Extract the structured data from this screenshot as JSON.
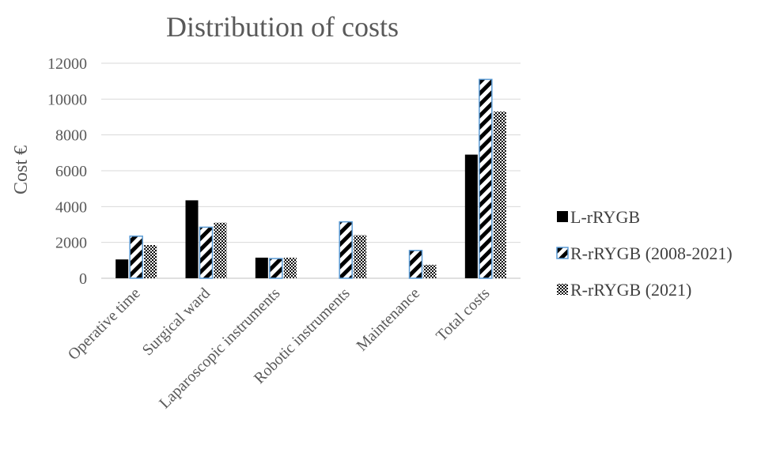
{
  "chart_data": {
    "type": "bar",
    "title": "Distribution of costs",
    "xlabel": "",
    "ylabel": "Cost €",
    "ylim": [
      0,
      12000
    ],
    "yticks": [
      "0",
      "2000",
      "4000",
      "6000",
      "8000",
      "10000",
      "12000"
    ],
    "grid": true,
    "legend_position": "right",
    "categories": [
      "Operative time",
      "Surgical ward",
      "Laparoscopic instruments",
      "Robotic instruments",
      "Maintenance",
      "Total costs"
    ],
    "series": [
      {
        "name": "L-rRYGB",
        "pattern": "solid-black",
        "values": [
          1050,
          4350,
          1150,
          0,
          0,
          6900
        ]
      },
      {
        "name": "R-rRYGB (2008-2021)",
        "pattern": "diagonal-stripes-blue-outline",
        "values": [
          2350,
          2850,
          1100,
          3150,
          1550,
          11100
        ]
      },
      {
        "name": "R-rRYGB (2021)",
        "pattern": "dotted",
        "values": [
          1850,
          3100,
          1150,
          2400,
          750,
          9300
        ]
      }
    ],
    "colors": {
      "solid": "#000000",
      "outline": "#5b9bd5",
      "grid": "#d9d9d9",
      "text": "#595959"
    }
  }
}
